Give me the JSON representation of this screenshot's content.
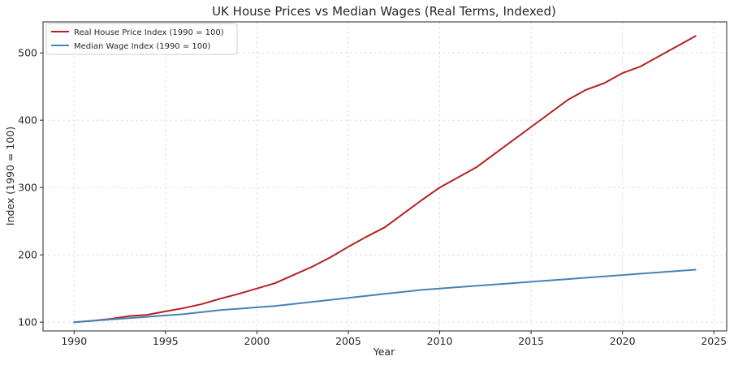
{
  "chart_data": {
    "type": "line",
    "title": "UK House Prices vs Median Wages (Real Terms, Indexed)",
    "xlabel": "Year",
    "ylabel": "Index (1990 = 100)",
    "xlim": [
      1988.3,
      2025.7
    ],
    "ylim": [
      87,
      546
    ],
    "xticks": [
      1990,
      1995,
      2000,
      2005,
      2010,
      2015,
      2020,
      2025
    ],
    "yticks": [
      100,
      200,
      300,
      400,
      500
    ],
    "grid": true,
    "legend_position": "upper-left",
    "series": [
      {
        "name": "Real House Price Index (1990 = 100)",
        "color": "#b22222",
        "x": [
          1990,
          1991,
          1992,
          1993,
          1994,
          1995,
          1996,
          1997,
          1998,
          1999,
          2000,
          2001,
          2002,
          2003,
          2004,
          2005,
          2006,
          2007,
          2008,
          2009,
          2010,
          2011,
          2012,
          2013,
          2014,
          2015,
          2016,
          2017,
          2018,
          2019,
          2020,
          2021,
          2022,
          2023,
          2024
        ],
        "y": [
          100,
          102,
          105,
          109,
          111,
          116,
          121,
          127,
          135,
          142,
          150,
          158,
          170,
          182,
          196,
          212,
          227,
          241,
          261,
          281,
          300,
          315,
          330,
          350,
          370,
          390,
          410,
          430,
          445,
          455,
          470,
          480,
          495,
          510,
          525
        ]
      },
      {
        "name": "Median Wage Index (1990 = 100)",
        "color": "#4682b4",
        "x": [
          1990,
          1991,
          1992,
          1993,
          1994,
          1995,
          1996,
          1997,
          1998,
          1999,
          2000,
          2001,
          2002,
          2003,
          2004,
          2005,
          2006,
          2007,
          2008,
          2009,
          2010,
          2011,
          2012,
          2013,
          2014,
          2015,
          2016,
          2017,
          2018,
          2019,
          2020,
          2021,
          2022,
          2023,
          2024
        ],
        "y": [
          100,
          102,
          104,
          106,
          108,
          110,
          112,
          115,
          118,
          120,
          122,
          124,
          127,
          130,
          133,
          136,
          139,
          142,
          145,
          148,
          150,
          152,
          154,
          156,
          158,
          160,
          162,
          164,
          166,
          168,
          170,
          172,
          174,
          176,
          178
        ]
      }
    ]
  }
}
